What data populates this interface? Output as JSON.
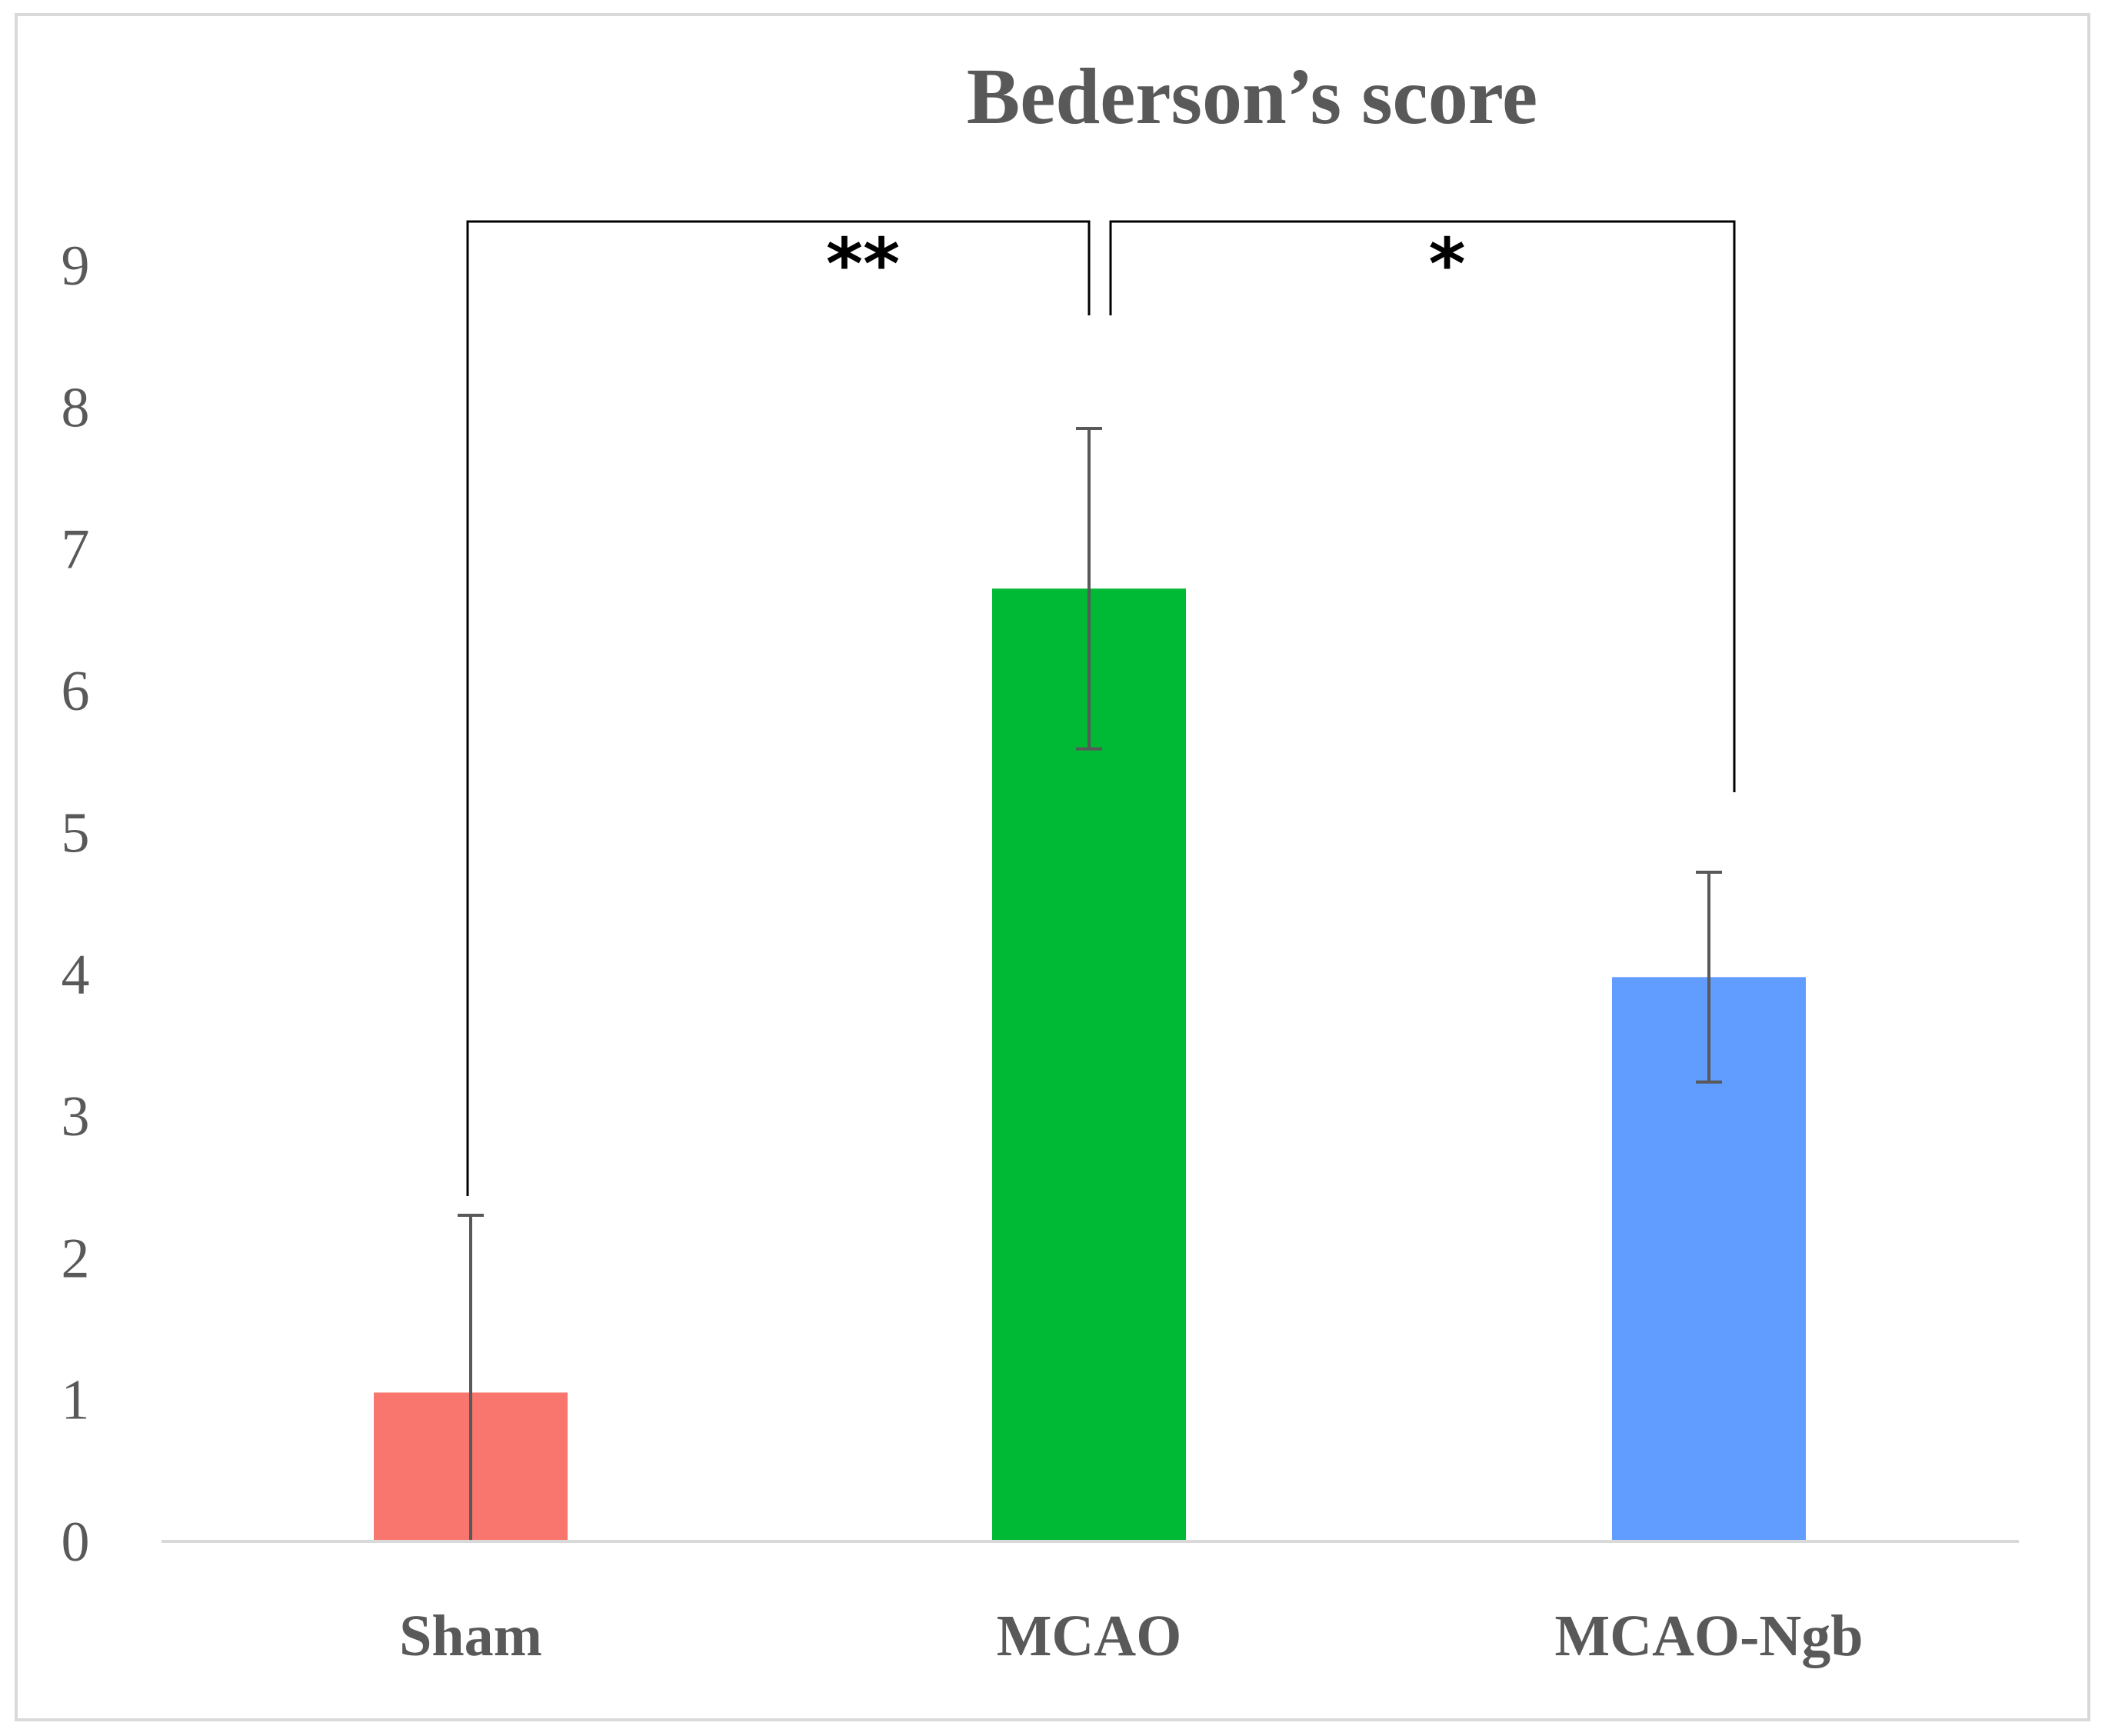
{
  "chart_data": {
    "type": "bar",
    "title": "Bederson’s score",
    "xlabel": "",
    "ylabel": "",
    "ylim": [
      0,
      9
    ],
    "y_ticks": [
      "0",
      "1",
      "2",
      "3",
      "4",
      "5",
      "6",
      "7",
      "8",
      "9"
    ],
    "categories": [
      "Sham",
      "MCAO",
      "MCAO-Ngb"
    ],
    "values": [
      1.05,
      6.72,
      3.98
    ],
    "error": [
      1.25,
      1.13,
      0.74
    ],
    "colors": [
      "#f8766d",
      "#00b935",
      "#619cff"
    ],
    "grid": false,
    "legend": "none",
    "significance": [
      {
        "from": "Sham",
        "to": "MCAO",
        "label": "**"
      },
      {
        "from": "MCAO",
        "to": "MCAO-Ngb",
        "label": "*"
      }
    ]
  }
}
